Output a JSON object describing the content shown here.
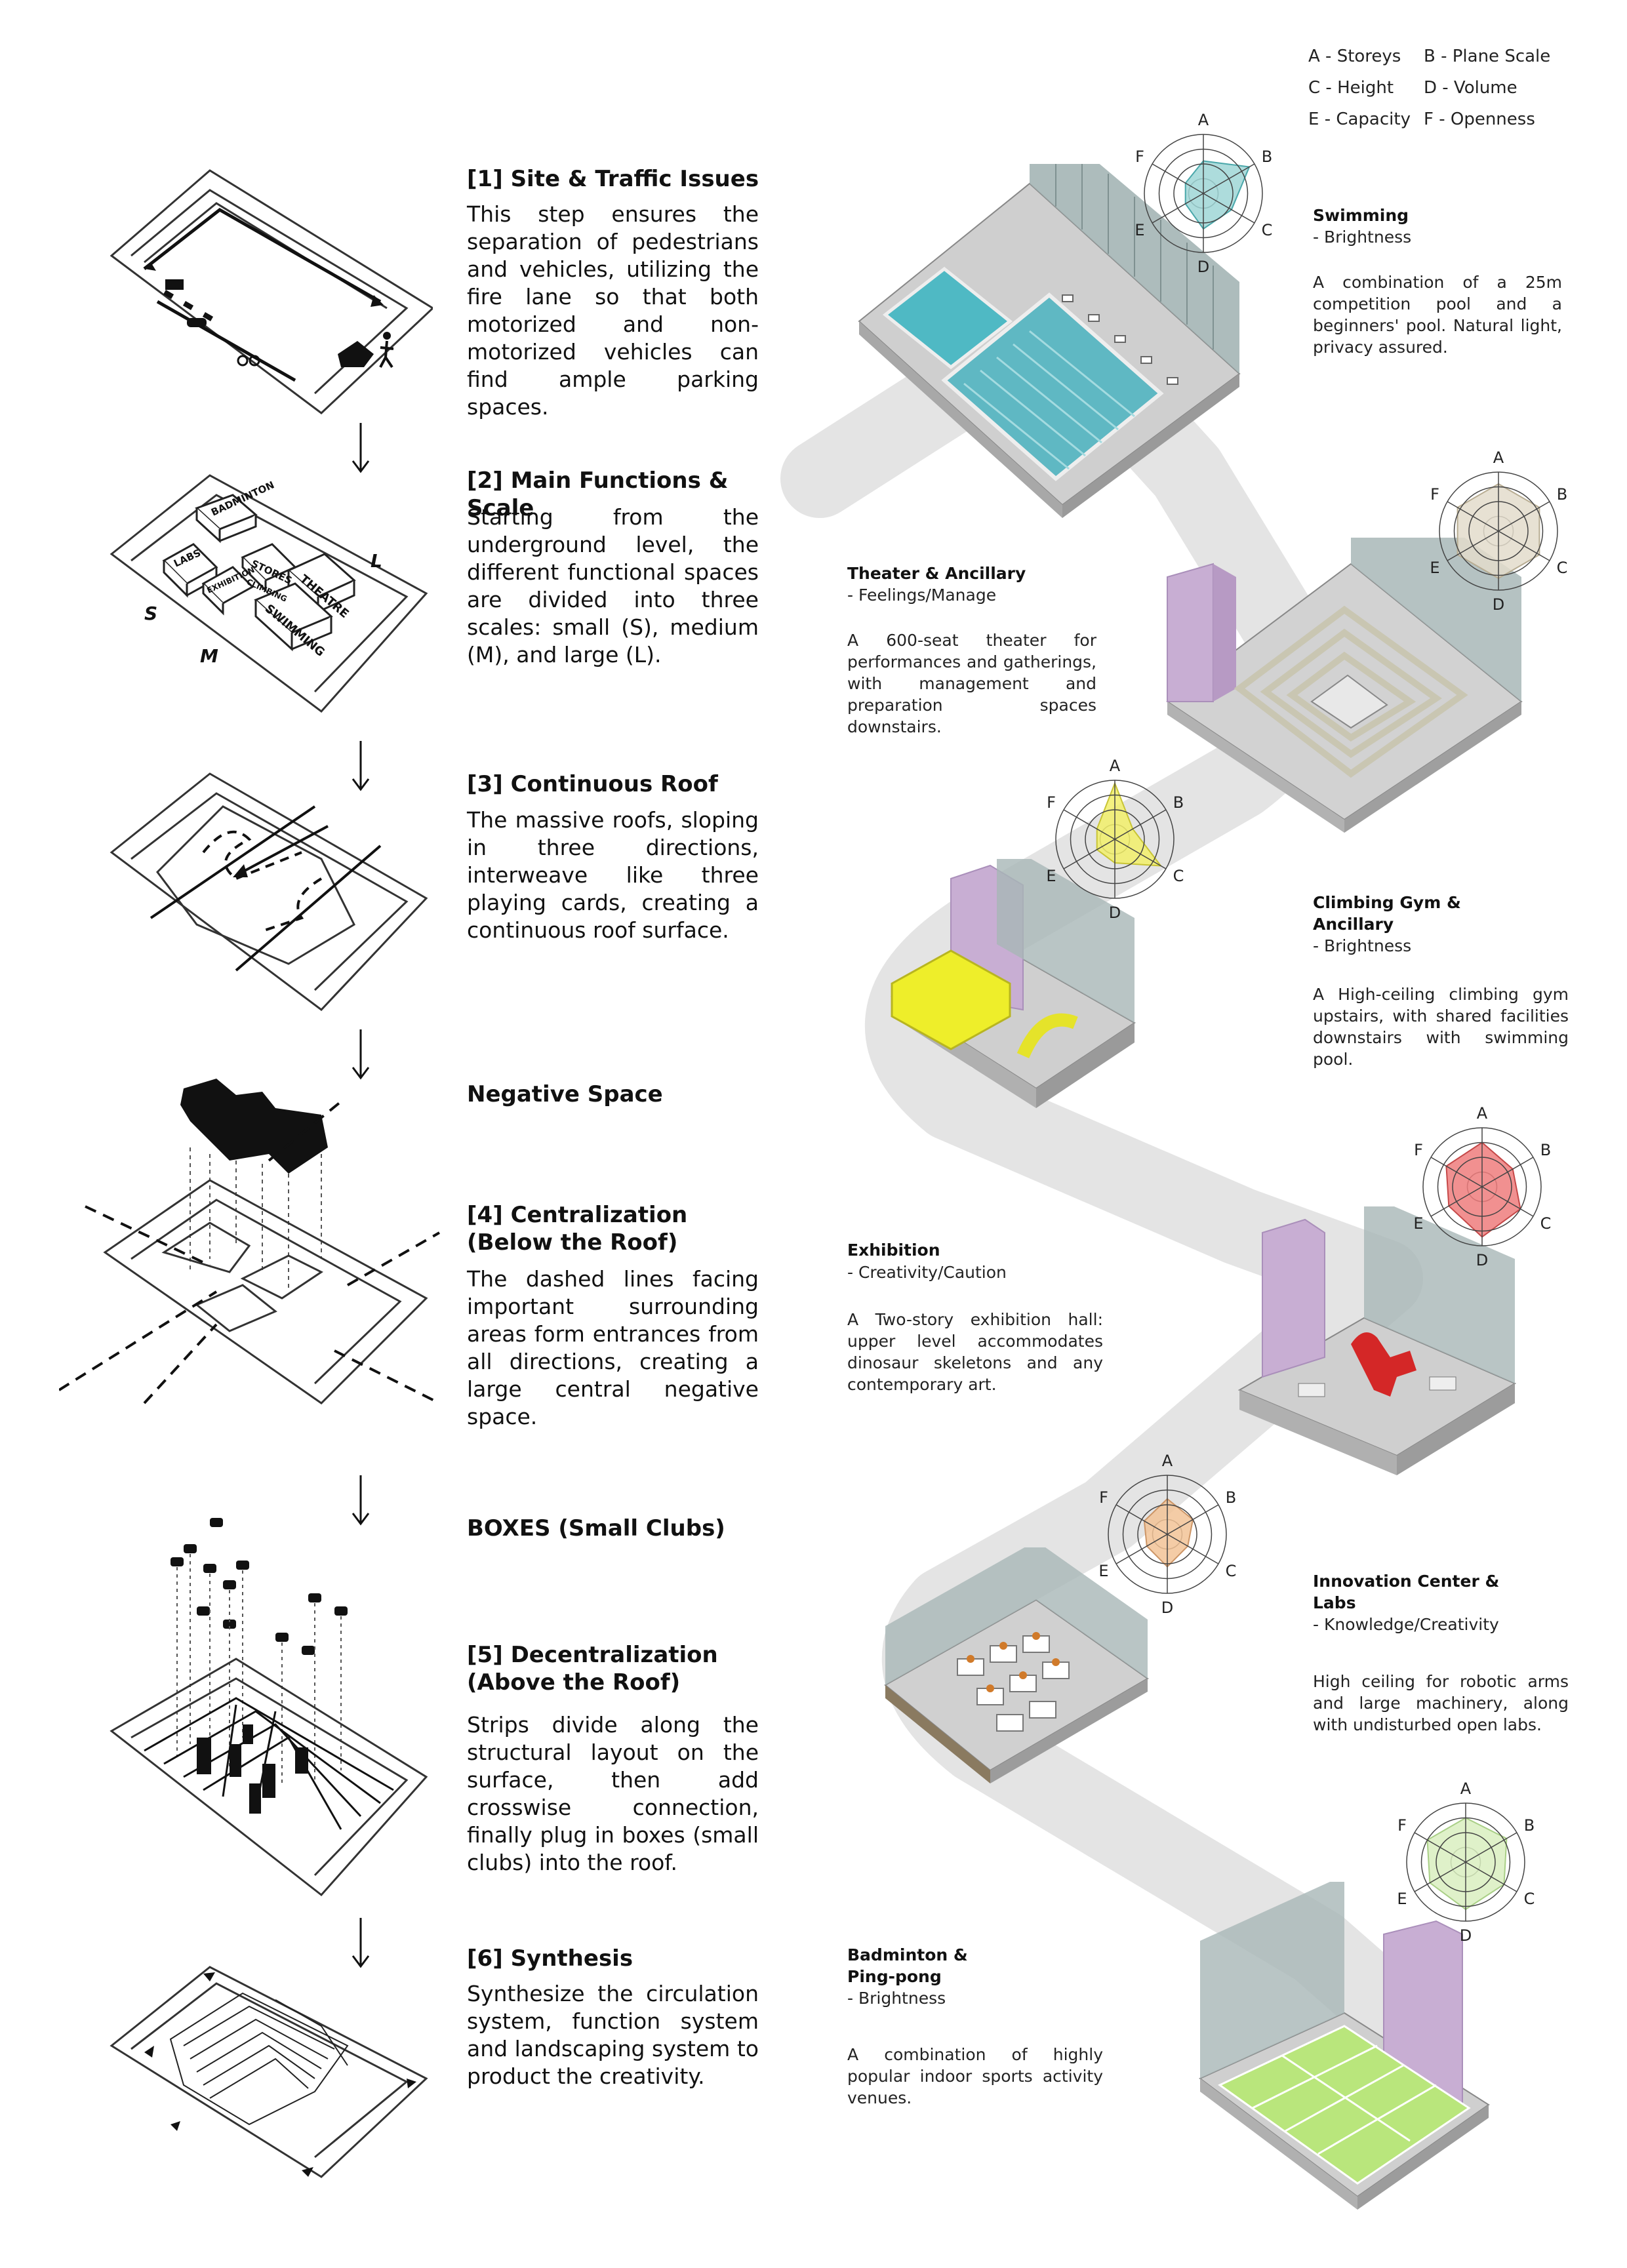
{
  "legend": {
    "a": "A - Storeys",
    "b": "B - Plane Scale",
    "c": "C - Height",
    "d": "D - Volume",
    "e": "E - Capacity",
    "f": "F - Openness"
  },
  "radar_axes": [
    "A",
    "B",
    "C",
    "D",
    "E",
    "F"
  ],
  "steps": [
    {
      "title": "[1] Site & Traffic Issues",
      "body": "This step ensures the separation of pedestrians and vehicles, utilizing the fire lane so that both motorized and non-motorized vehicles can find ample parking spaces."
    },
    {
      "title": "[2] Main Functions & Scale",
      "body": "Starting from the underground level, the different functional spaces are divided into three scales: small (S), medium (M), and large (L)."
    },
    {
      "title": "[3] Continuous Roof",
      "body": "The massive roofs, sloping in three directions, interweave like three playing cards, creating a continuous roof surface."
    },
    {
      "title": "Negative Space",
      "body": ""
    },
    {
      "title": "[4] Centralization (Below the Roof)",
      "body": "The dashed lines facing important surrounding areas form entrances from all directions, creating a large central negative space."
    },
    {
      "title": "BOXES (Small Clubs)",
      "body": ""
    },
    {
      "title": "[5] Decentralization (Above the Roof)",
      "body": "Strips divide along the structural layout on the surface, then add crosswise connection, finally plug in boxes (small clubs) into the roof."
    },
    {
      "title": "[6] Synthesis",
      "body": "Synthesize the circulation system, function system and landscaping system to product the creativity."
    }
  ],
  "sketch_labels": {
    "labs": "LABS",
    "badminton": "BADMINTON",
    "exhibition": "EXHIBITION",
    "stores": "STORES",
    "climbing": "CLIMBING",
    "theatre": "THEATRE",
    "swimming": "SWIMMING",
    "s": "S",
    "m": "M",
    "l": "L"
  },
  "spaces": [
    {
      "title": "Swimming",
      "subtitle": "- Brightness",
      "desc": "A combination of a 25m competition pool and a beginners' pool. Natural light, privacy assured.",
      "color": "#9fd6d6",
      "stroke": "#4aa7aa",
      "values": [
        0.55,
        0.9,
        0.55,
        0.6,
        0.35,
        0.35
      ]
    },
    {
      "title": "Theater & Ancillary",
      "subtitle": "- Feelings/Manage",
      "desc": "A 600-seat theater for performances and gatherings, with management and preparation spaces downstairs.",
      "color": "#e3dccb",
      "stroke": "#b8ad93",
      "values": [
        0.8,
        0.8,
        0.8,
        0.8,
        0.8,
        0.8
      ]
    },
    {
      "title": "Climbing Gym & Ancillary",
      "subtitle": "- Brightness",
      "desc": "A High-ceiling climbing gym upstairs, with shared facilities downstairs with swimming pool.",
      "color": "#f2f06a",
      "stroke": "#c8c435",
      "values": [
        0.95,
        0.35,
        0.9,
        0.4,
        0.35,
        0.35
      ]
    },
    {
      "title": "Exhibition",
      "subtitle": "- Creativity/Caution",
      "desc": "A Two-story exhibition hall: upper level accommodates dinosaur skeletons and any contemporary art.",
      "color": "#ee7c7c",
      "stroke": "#c54848",
      "values": [
        0.75,
        0.6,
        0.75,
        0.85,
        0.65,
        0.7
      ]
    },
    {
      "title": "Innovation Center & Labs",
      "subtitle": "- Knowledge/Creativity",
      "desc": "High ceiling for robotic arms and large machinery, along with undisturbed open labs.",
      "color": "#f2c397",
      "stroke": "#cc9566",
      "values": [
        0.6,
        0.5,
        0.4,
        0.55,
        0.4,
        0.45
      ]
    },
    {
      "title": "Badminton & Ping-pong",
      "subtitle": "- Brightness",
      "desc": "A combination of highly popular indoor sports activity venues.",
      "color": "#d9efbf",
      "stroke": "#a9cf86",
      "values": [
        0.75,
        0.8,
        0.75,
        0.8,
        0.7,
        0.75
      ]
    }
  ]
}
